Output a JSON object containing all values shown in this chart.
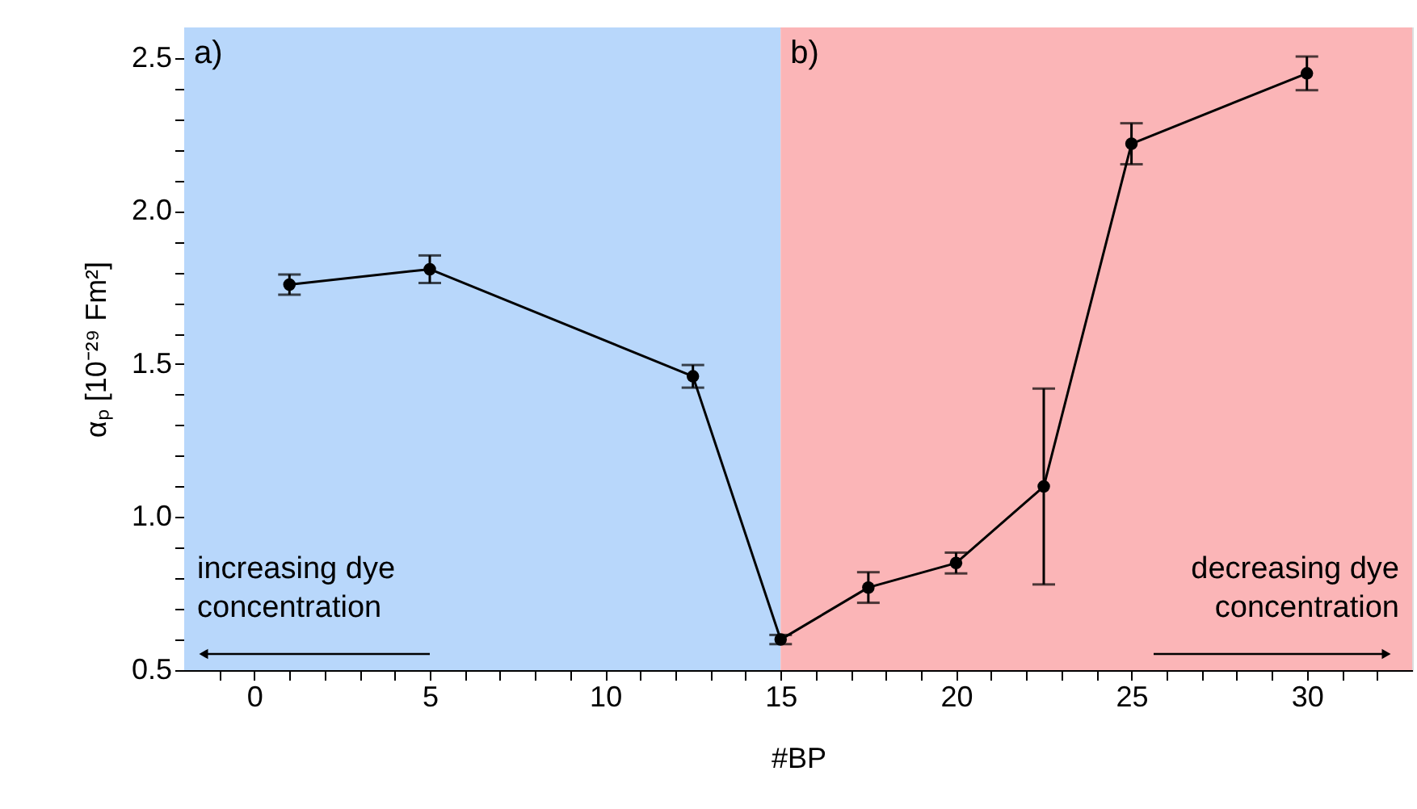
{
  "chart_data": {
    "type": "line",
    "xlabel": "#BP",
    "ylabel": "αₚ [10⁻²⁹ Fm²]",
    "x": [
      1,
      5,
      12.5,
      15,
      17.5,
      20,
      22.5,
      25,
      30
    ],
    "series": [
      {
        "color": "#000000",
        "values": [
          1.76,
          1.81,
          1.46,
          0.6,
          0.77,
          0.85,
          1.1,
          2.22,
          2.45
        ],
        "errors": [
          0.033,
          0.045,
          0.037,
          0.015,
          0.05,
          0.034,
          0.32,
          0.067,
          0.055
        ]
      }
    ],
    "marker": "circle",
    "line_style": "solid",
    "xlim": [
      -2,
      33
    ],
    "ylim": [
      0.5,
      2.6
    ],
    "xticks": [
      {
        "value": -1,
        "label": null
      },
      0,
      {
        "value": 1,
        "label": null
      },
      {
        "value": 2,
        "label": null
      },
      {
        "value": 3,
        "label": null
      },
      {
        "value": 4,
        "label": null
      },
      5,
      {
        "value": 6,
        "label": null
      },
      {
        "value": 7,
        "label": null
      },
      {
        "value": 8,
        "label": null
      },
      {
        "value": 9,
        "label": null
      },
      10,
      {
        "value": 11,
        "label": null
      },
      {
        "value": 12,
        "label": null
      },
      {
        "value": 13,
        "label": null
      },
      {
        "value": 14,
        "label": null
      },
      15,
      {
        "value": 16,
        "label": null
      },
      {
        "value": 17,
        "label": null
      },
      {
        "value": 18,
        "label": null
      },
      {
        "value": 19,
        "label": null
      },
      20,
      {
        "value": 21,
        "label": null
      },
      {
        "value": 22,
        "label": null
      },
      {
        "value": 23,
        "label": null
      },
      {
        "value": 24,
        "label": null
      },
      25,
      {
        "value": 26,
        "label": null
      },
      {
        "value": 27,
        "label": null
      },
      {
        "value": 28,
        "label": null
      },
      {
        "value": 29,
        "label": null
      },
      30,
      {
        "value": 31,
        "label": null
      },
      {
        "value": 32,
        "label": null
      }
    ],
    "yticks": [
      {
        "value": 0.5,
        "label": "0.5"
      },
      {
        "value": 0.6,
        "label": null
      },
      {
        "value": 0.7,
        "label": null
      },
      {
        "value": 0.8,
        "label": null
      },
      {
        "value": 0.9,
        "label": null
      },
      {
        "value": 1.0,
        "label": "1.0"
      },
      {
        "value": 1.1,
        "label": null
      },
      {
        "value": 1.2,
        "label": null
      },
      {
        "value": 1.3,
        "label": null
      },
      {
        "value": 1.4,
        "label": null
      },
      {
        "value": 1.5,
        "label": "1.5"
      },
      {
        "value": 1.6,
        "label": null
      },
      {
        "value": 1.7,
        "label": null
      },
      {
        "value": 1.8,
        "label": null
      },
      {
        "value": 1.9,
        "label": null
      },
      {
        "value": 2.0,
        "label": "2.0"
      },
      {
        "value": 2.1,
        "label": null
      },
      {
        "value": 2.2,
        "label": null
      },
      {
        "value": 2.3,
        "label": null
      },
      {
        "value": 2.4,
        "label": null
      },
      {
        "value": 2.5,
        "label": "2.5"
      }
    ],
    "bands": [
      {
        "axis": "x",
        "from": -2,
        "to": 15,
        "label": "a)",
        "color": "#b8d7fb"
      },
      {
        "axis": "x",
        "from": 15,
        "to": 33,
        "label": "b)",
        "color": "#fbb5b7"
      }
    ],
    "annotations": [
      "increasing dye\nconcentration",
      "decreasing dye\nconcentration"
    ],
    "grid": false
  }
}
